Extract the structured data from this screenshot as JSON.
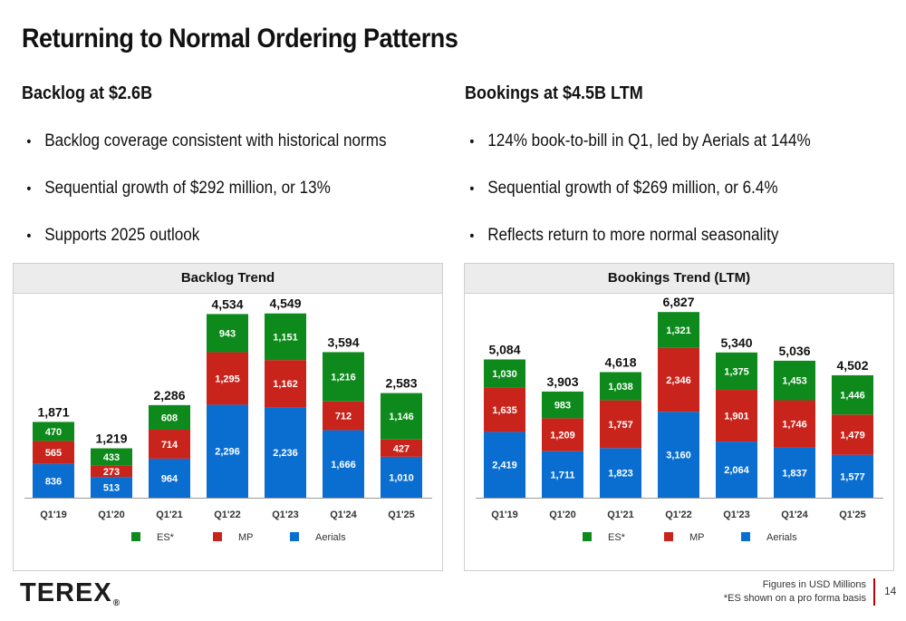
{
  "slide": {
    "title": "Returning to Normal Ordering Patterns",
    "left": {
      "heading": "Backlog at $2.6B",
      "bullets": [
        "Backlog coverage consistent with historical norms",
        "Sequential growth of $292 million, or 13%",
        "Supports 2025 outlook"
      ]
    },
    "right": {
      "heading": "Bookings at $4.5B LTM",
      "bullets": [
        "124% book-to-bill in Q1, led by Aerials at 144%",
        "Sequential growth of $269 million, or 6.4%",
        "Reflects return to more normal seasonality"
      ]
    },
    "bullet_glyph": "•",
    "logo": "TEREX",
    "logo_mark": "®",
    "footnote_line1": "Figures in USD Millions",
    "footnote_line2": "*ES shown on a pro forma basis",
    "page_number": "14"
  },
  "colors": {
    "aerials": "#0a6ed1",
    "mp": "#c8241c",
    "es": "#0d8a1b",
    "text": "#111111"
  },
  "chart_data": [
    {
      "type": "bar",
      "stacked": true,
      "title": "Backlog Trend",
      "categories": [
        "Q1'19",
        "Q1'20",
        "Q1'21",
        "Q1'22",
        "Q1'23",
        "Q1'24",
        "Q1'25"
      ],
      "series": [
        {
          "name": "Aerials",
          "values": [
            836,
            513,
            964,
            2296,
            2236,
            1666,
            1010
          ]
        },
        {
          "name": "MP",
          "values": [
            565,
            273,
            714,
            1295,
            1162,
            712,
            427
          ]
        },
        {
          "name": "ES*",
          "values": [
            470,
            433,
            608,
            943,
            1151,
            1216,
            1146
          ]
        }
      ],
      "totals": [
        1871,
        1219,
        2286,
        4534,
        4549,
        3594,
        2583
      ],
      "legend_order": [
        "ES*",
        "MP",
        "Aerials"
      ],
      "legend": "bottom",
      "ylim": [
        0,
        4700
      ],
      "grid": false
    },
    {
      "type": "bar",
      "stacked": true,
      "title": "Bookings Trend (LTM)",
      "categories": [
        "Q1'19",
        "Q1'20",
        "Q1'21",
        "Q1'22",
        "Q1'23",
        "Q1'24",
        "Q1'25"
      ],
      "series": [
        {
          "name": "Aerials",
          "values": [
            2419,
            1711,
            1823,
            3160,
            2064,
            1837,
            1577
          ]
        },
        {
          "name": "MP",
          "values": [
            1635,
            1209,
            1757,
            2346,
            1901,
            1746,
            1479
          ]
        },
        {
          "name": "ES*",
          "values": [
            1030,
            983,
            1038,
            1321,
            1375,
            1453,
            1446
          ]
        }
      ],
      "totals": [
        5084,
        3903,
        4618,
        6827,
        5340,
        5036,
        4502
      ],
      "legend_order": [
        "ES*",
        "MP",
        "Aerials"
      ],
      "legend": "bottom",
      "ylim": [
        0,
        7000
      ],
      "grid": false
    }
  ]
}
